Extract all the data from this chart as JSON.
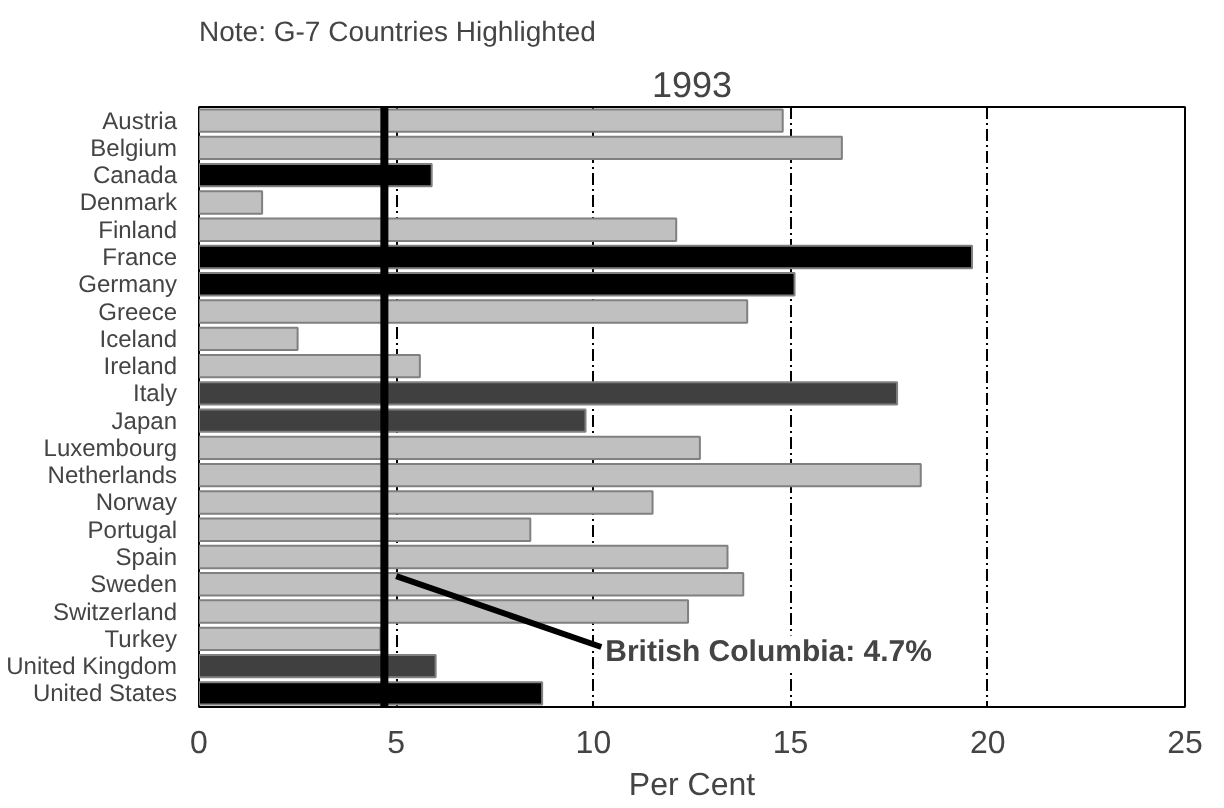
{
  "chart_data": {
    "type": "bar",
    "orientation": "horizontal",
    "title": "1993",
    "xlabel": "Per Cent",
    "annotations": [
      "Note: G-7 Countries Highlighted"
    ],
    "categories": [
      "Austria",
      "Belgium",
      "Canada",
      "Denmark",
      "Finland",
      "France",
      "Germany",
      "Greece",
      "Iceland",
      "Ireland",
      "Italy",
      "Japan",
      "Luxembourg",
      "Netherlands",
      "Norway",
      "Portugal",
      "Spain",
      "Sweden",
      "Switzerland",
      "Turkey",
      "United Kingdom",
      "United States"
    ],
    "values": [
      14.8,
      16.3,
      5.9,
      1.6,
      12.1,
      19.6,
      15.1,
      13.9,
      2.5,
      5.6,
      17.7,
      9.8,
      12.7,
      18.3,
      11.5,
      8.4,
      13.4,
      13.8,
      12.4,
      4.6,
      6.0,
      8.7
    ],
    "colors": [
      "#c0c0c0",
      "#c0c0c0",
      "#000000",
      "#c0c0c0",
      "#c0c0c0",
      "#000000",
      "#000000",
      "#c0c0c0",
      "#c0c0c0",
      "#c0c0c0",
      "#404040",
      "#404040",
      "#c0c0c0",
      "#c0c0c0",
      "#c0c0c0",
      "#c0c0c0",
      "#c0c0c0",
      "#c0c0c0",
      "#c0c0c0",
      "#c0c0c0",
      "#404040",
      "#000000"
    ],
    "xlim": [
      0,
      25
    ],
    "xticks": [
      0,
      5,
      10,
      15,
      20,
      25
    ],
    "grid": "x",
    "ref_lines": [
      {
        "axis": "x",
        "value": 4.7,
        "label": "British Columbia: 4.7%",
        "color": "#000000"
      }
    ]
  }
}
